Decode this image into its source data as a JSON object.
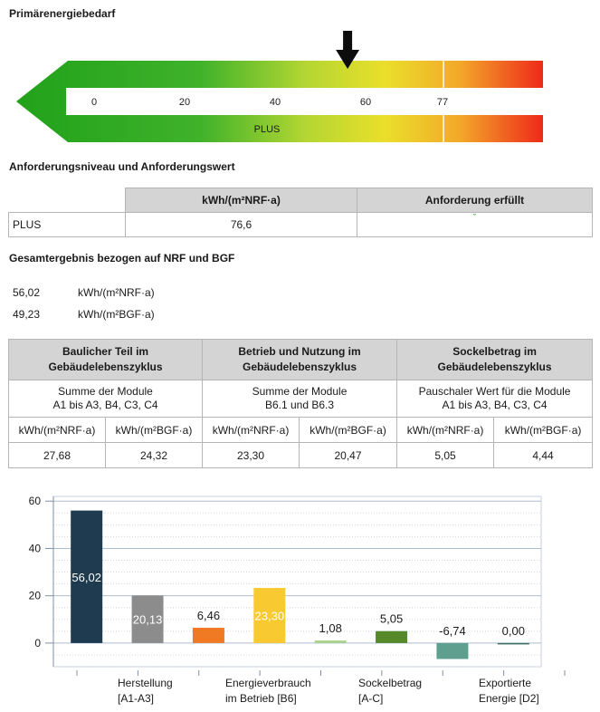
{
  "energy_scale": {
    "title": "Primärenergiebedarf",
    "ticks": [
      {
        "value": 0,
        "label": "0"
      },
      {
        "value": 20,
        "label": "20"
      },
      {
        "value": 40,
        "label": "40"
      },
      {
        "value": 60,
        "label": "60"
      },
      {
        "value": 77,
        "label": "77"
      }
    ],
    "band_label": "PLUS",
    "limit_value": 77,
    "arrow_value": 56.02,
    "colors": {
      "green": "#22a51c",
      "yellow": "#e8df2a",
      "red": "#ee2a1a"
    }
  },
  "requirement": {
    "title": "Anforderungsniveau und Anforderungswert",
    "col_unit": "kWh/(m²NRF·a)",
    "col_fulfilled": "Anforderung erfüllt",
    "row_label": "PLUS",
    "row_value": "76,6",
    "row_mark": "ˇ"
  },
  "totals": {
    "title": "Gesamtergebnis bezogen auf NRF und BGF",
    "rows": [
      {
        "value": "56,02",
        "unit": "kWh/(m²NRF·a)"
      },
      {
        "value": "49,23",
        "unit": "kWh/(m²BGF·a)"
      }
    ]
  },
  "lifecycle": {
    "groups": [
      {
        "title_1": "Baulicher Teil im",
        "title_2": "Gebäudelebenszyklus",
        "desc_1": "Summe der Module",
        "desc_2": "A1 bis A3, B4, C3, C4",
        "unit_nrf": "kWh/(m²NRF·a)",
        "unit_bgf": "kWh/(m²BGF·a)",
        "nrf": "27,68",
        "bgf": "24,32"
      },
      {
        "title_1": "Betrieb und Nutzung im",
        "title_2": "Gebäudelebenszyklus",
        "desc_1": "Summe der Module",
        "desc_2": "B6.1 und B6.3",
        "unit_nrf": "kWh/(m²NRF·a)",
        "unit_bgf": "kWh/(m²BGF·a)",
        "nrf": "23,30",
        "bgf": "20,47"
      },
      {
        "title_1": "Sockelbetrag im",
        "title_2": "Gebäudelebenszyklus",
        "desc_1": "Pauschaler Wert für die Module",
        "desc_2": "A1 bis A3, B4, C3, C4",
        "unit_nrf": "kWh/(m²NRF·a)",
        "unit_bgf": "kWh/(m²BGF·a)",
        "nrf": "5,05",
        "bgf": "4,44"
      }
    ]
  },
  "chart_data": {
    "type": "bar",
    "ylim": [
      -10,
      62
    ],
    "yticks": [
      0,
      20,
      40,
      60
    ],
    "grid": true,
    "bars": [
      {
        "value": 56.02,
        "label": "56,02",
        "color": "#1e3b50",
        "label_inside": true
      },
      {
        "value": 20.13,
        "label": "20,13",
        "color": "#8c8c8c",
        "label_inside": true
      },
      {
        "value": 6.46,
        "label": "6,46",
        "color": "#f07a24",
        "label_inside": false
      },
      {
        "value": 23.3,
        "label": "23,30",
        "color": "#f8c930",
        "label_inside": true
      },
      {
        "value": 1.08,
        "label": "1,08",
        "color": "#a9d38c",
        "label_inside": false
      },
      {
        "value": 5.05,
        "label": "5,05",
        "color": "#56892a",
        "label_inside": false
      },
      {
        "value": -6.74,
        "label": "-6,74",
        "color": "#5e9f8f",
        "label_inside": false
      },
      {
        "value": 0.0,
        "label": "0,00",
        "color": "#3b6e5c",
        "label_inside": false
      }
    ],
    "category_labels": [
      {
        "line1": "Herstellung",
        "line2": "[A1-A3]"
      },
      {
        "line1": "Energieverbrauch",
        "line2": "im Betrieb [B6]"
      },
      {
        "line1": "Sockelbetrag",
        "line2": "[A-C]"
      },
      {
        "line1": "Exportierte",
        "line2": "Energie [D2]"
      }
    ]
  }
}
